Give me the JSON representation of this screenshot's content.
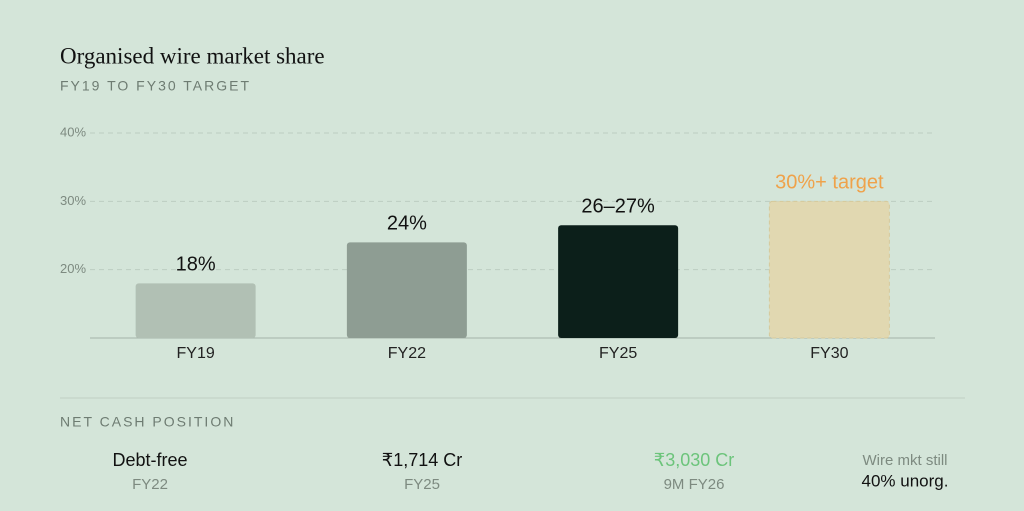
{
  "chart_data": {
    "type": "bar",
    "title": "Organised wire market share",
    "subtitle": "FY19 TO FY30 TARGET",
    "categories": [
      "FY19",
      "FY22",
      "FY25",
      "FY30"
    ],
    "values": [
      18,
      24,
      26.5,
      30
    ],
    "value_labels": [
      "18%",
      "24%",
      "26–27%",
      "30%+ target"
    ],
    "colors": [
      "#b1c0b4",
      "#8e9d93",
      "#0c1f1a",
      "#e1d8b1"
    ],
    "label_colors": [
      "#111111",
      "#111111",
      "#111111",
      "#efa24a"
    ],
    "ylim": [
      10,
      40
    ],
    "yticks": [
      {
        "value": 20,
        "label": "20%"
      },
      {
        "value": 30,
        "label": "30%"
      },
      {
        "value": 40,
        "label": "40%"
      }
    ],
    "grid": true
  },
  "stats": {
    "heading": "NET CASH POSITION",
    "items": [
      {
        "main": "Debt-free",
        "sub": "FY22"
      },
      {
        "main": "₹1,714 Cr",
        "sub": "FY25"
      },
      {
        "main": "₹3,030 Cr",
        "sub": "9M FY26",
        "color": "#6cc47b"
      },
      {
        "lead": "Wire mkt still",
        "main": "40% unorg."
      }
    ]
  }
}
